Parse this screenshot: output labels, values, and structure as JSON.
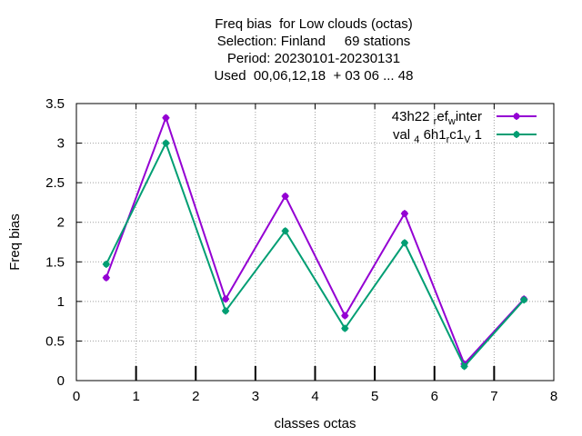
{
  "chart_data": {
    "type": "line",
    "title": [
      "Freq bias  for Low clouds (octas)",
      "Selection: Finland     69 stations",
      "Period: 20230101-20230131",
      "Used  00,06,12,18  + 03 06 ... 48"
    ],
    "xlabel": "classes octas",
    "ylabel": "Freq bias",
    "xlim": [
      0,
      8
    ],
    "ylim": [
      0,
      3.5
    ],
    "xticks": [
      "0",
      "1",
      "2",
      "3",
      "4",
      "5",
      "6",
      "7",
      "8"
    ],
    "yticks": [
      "0",
      "0.5",
      "1",
      "1.5",
      "2",
      "2.5",
      "3",
      "3.5"
    ],
    "grid": true,
    "legend_position": "top-right",
    "x": [
      0.5,
      1.5,
      2.5,
      3.5,
      4.5,
      5.5,
      6.5,
      7.5
    ],
    "series": [
      {
        "name_parts": [
          "43h22",
          "r",
          "ef",
          "w",
          "inter"
        ],
        "color": "#9400d3",
        "values": [
          1.3,
          3.32,
          1.03,
          2.33,
          0.82,
          2.11,
          0.21,
          1.03
        ]
      },
      {
        "name_parts": [
          "val",
          "4",
          "6h1",
          "r",
          "c1",
          "V",
          "1"
        ],
        "color": "#009e73",
        "values": [
          1.47,
          3.0,
          0.88,
          1.89,
          0.66,
          1.74,
          0.18,
          1.02
        ]
      }
    ]
  }
}
